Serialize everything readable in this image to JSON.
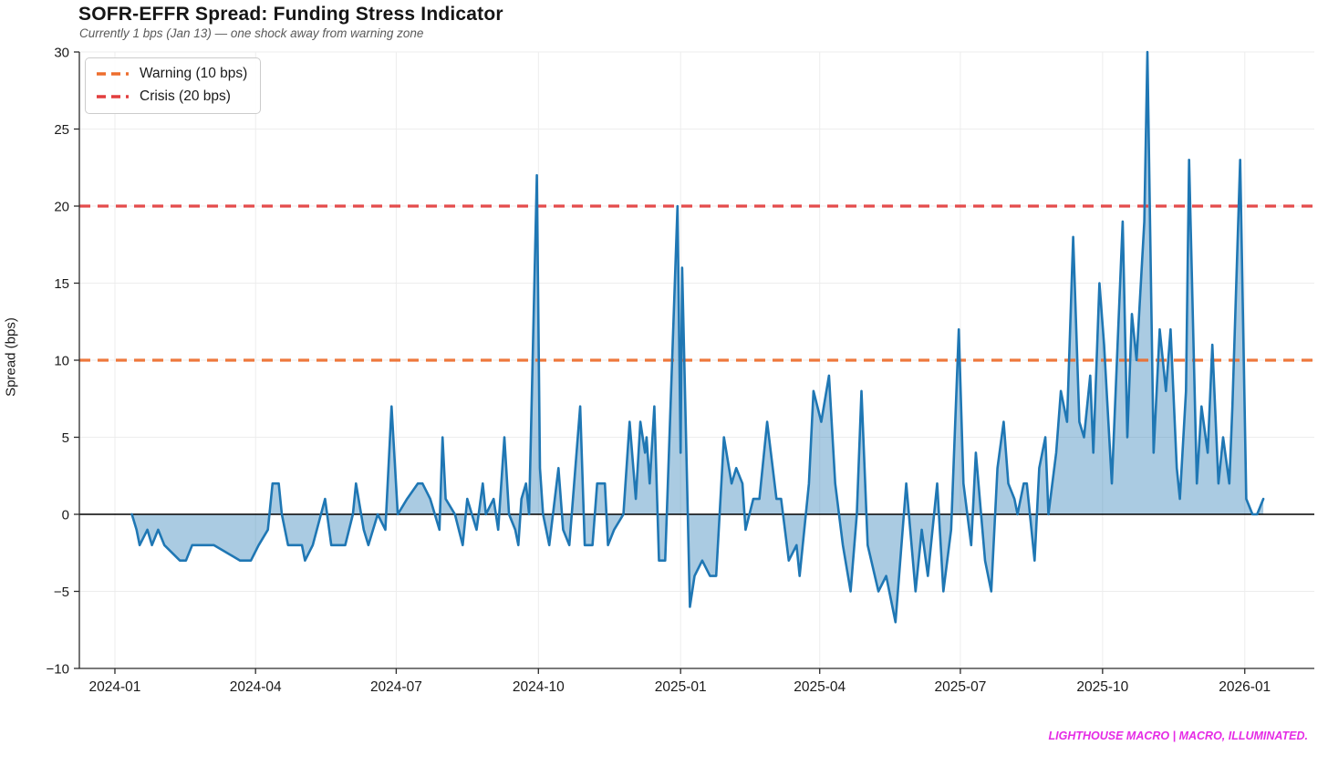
{
  "header": {
    "title": "SOFR-EFFR Spread: Funding Stress Indicator",
    "subtitle": "Currently 1 bps (Jan 13) — one shock away from warning zone"
  },
  "footer": {
    "brand": "LIGHTHOUSE MACRO | MACRO, ILLUMINATED."
  },
  "colors": {
    "line": "#1f77b4",
    "fill": "#1f77b4",
    "warning": "#ed6d2d",
    "crisis": "#e23d3d",
    "zero_line": "#000000",
    "grid": "#ededed",
    "spine": "#2b2b2b",
    "tick_text": "#1a1a1a"
  },
  "chart_data": {
    "type": "area",
    "title": "SOFR-EFFR Spread: Funding Stress Indicator",
    "subtitle": "Currently 1 bps (Jan 13) — one shock away from warning zone",
    "xlabel": "",
    "ylabel": "Spread (bps)",
    "ylim": [
      -10,
      30
    ],
    "yticks": [
      30,
      25,
      20,
      15,
      10,
      5,
      0,
      -5,
      -10
    ],
    "x_domain": [
      "2023-12-09",
      "2026-02-15"
    ],
    "xticks": [
      {
        "date": "2024-01-01",
        "label": "2024-01"
      },
      {
        "date": "2024-04-01",
        "label": "2024-04"
      },
      {
        "date": "2024-07-01",
        "label": "2024-07"
      },
      {
        "date": "2024-10-01",
        "label": "2024-10"
      },
      {
        "date": "2025-01-01",
        "label": "2025-01"
      },
      {
        "date": "2025-04-01",
        "label": "2025-04"
      },
      {
        "date": "2025-07-01",
        "label": "2025-07"
      },
      {
        "date": "2025-10-01",
        "label": "2025-10"
      },
      {
        "date": "2026-01-01",
        "label": "2026-01"
      }
    ],
    "grid": true,
    "legend_position": "upper-left",
    "zero_line": 0,
    "thresholds": [
      {
        "name": "warning",
        "label": "Warning (10 bps)",
        "value": 10,
        "color": "#ed6d2d"
      },
      {
        "name": "crisis",
        "label": "Crisis (20 bps)",
        "value": 20,
        "color": "#e23d3d"
      }
    ],
    "series": [
      {
        "name": "SOFR-EFFR spread (bps)",
        "color": "#1f77b4",
        "fill_opacity": 0.38,
        "points": [
          [
            "2024-01-12",
            0
          ],
          [
            "2024-01-15",
            -1
          ],
          [
            "2024-01-17",
            -2
          ],
          [
            "2024-01-22",
            -1
          ],
          [
            "2024-01-25",
            -2
          ],
          [
            "2024-01-29",
            -1
          ],
          [
            "2024-02-02",
            -2
          ],
          [
            "2024-02-12",
            -3
          ],
          [
            "2024-02-16",
            -3
          ],
          [
            "2024-02-20",
            -2
          ],
          [
            "2024-03-05",
            -2
          ],
          [
            "2024-03-22",
            -3
          ],
          [
            "2024-03-29",
            -3
          ],
          [
            "2024-04-03",
            -2
          ],
          [
            "2024-04-09",
            -1
          ],
          [
            "2024-04-12",
            2
          ],
          [
            "2024-04-16",
            2
          ],
          [
            "2024-04-18",
            0
          ],
          [
            "2024-04-22",
            -2
          ],
          [
            "2024-05-01",
            -2
          ],
          [
            "2024-05-03",
            -3
          ],
          [
            "2024-05-08",
            -2
          ],
          [
            "2024-05-16",
            1
          ],
          [
            "2024-05-20",
            -2
          ],
          [
            "2024-05-29",
            -2
          ],
          [
            "2024-06-03",
            0
          ],
          [
            "2024-06-05",
            2
          ],
          [
            "2024-06-10",
            -1
          ],
          [
            "2024-06-13",
            -2
          ],
          [
            "2024-06-19",
            0
          ],
          [
            "2024-06-24",
            -1
          ],
          [
            "2024-06-28",
            7
          ],
          [
            "2024-07-02",
            0
          ],
          [
            "2024-07-08",
            1
          ],
          [
            "2024-07-15",
            2
          ],
          [
            "2024-07-18",
            2
          ],
          [
            "2024-07-23",
            1
          ],
          [
            "2024-07-29",
            -1
          ],
          [
            "2024-07-31",
            5
          ],
          [
            "2024-08-02",
            1
          ],
          [
            "2024-08-08",
            0
          ],
          [
            "2024-08-13",
            -2
          ],
          [
            "2024-08-16",
            1
          ],
          [
            "2024-08-22",
            -1
          ],
          [
            "2024-08-26",
            2
          ],
          [
            "2024-08-28",
            0
          ],
          [
            "2024-09-02",
            1
          ],
          [
            "2024-09-05",
            -1
          ],
          [
            "2024-09-09",
            5
          ],
          [
            "2024-09-12",
            0
          ],
          [
            "2024-09-16",
            -1
          ],
          [
            "2024-09-18",
            -2
          ],
          [
            "2024-09-20",
            1
          ],
          [
            "2024-09-23",
            2
          ],
          [
            "2024-09-25",
            0
          ],
          [
            "2024-09-30",
            22
          ],
          [
            "2024-10-02",
            3
          ],
          [
            "2024-10-04",
            0
          ],
          [
            "2024-10-08",
            -2
          ],
          [
            "2024-10-14",
            3
          ],
          [
            "2024-10-17",
            -1
          ],
          [
            "2024-10-21",
            -2
          ],
          [
            "2024-10-28",
            7
          ],
          [
            "2024-10-31",
            -2
          ],
          [
            "2024-11-05",
            -2
          ],
          [
            "2024-11-08",
            2
          ],
          [
            "2024-11-13",
            2
          ],
          [
            "2024-11-15",
            -2
          ],
          [
            "2024-11-19",
            -1
          ],
          [
            "2024-11-25",
            0
          ],
          [
            "2024-11-29",
            6
          ],
          [
            "2024-12-03",
            1
          ],
          [
            "2024-12-06",
            6
          ],
          [
            "2024-12-09",
            4
          ],
          [
            "2024-12-10",
            5
          ],
          [
            "2024-12-12",
            2
          ],
          [
            "2024-12-15",
            7
          ],
          [
            "2024-12-18",
            -3
          ],
          [
            "2024-12-22",
            -3
          ],
          [
            "2024-12-30",
            20
          ],
          [
            "2025-01-01",
            4
          ],
          [
            "2025-01-02",
            16
          ],
          [
            "2025-01-07",
            -6
          ],
          [
            "2025-01-10",
            -4
          ],
          [
            "2025-01-15",
            -3
          ],
          [
            "2025-01-20",
            -4
          ],
          [
            "2025-01-24",
            -4
          ],
          [
            "2025-01-29",
            5
          ],
          [
            "2025-02-03",
            2
          ],
          [
            "2025-02-06",
            3
          ],
          [
            "2025-02-10",
            2
          ],
          [
            "2025-02-12",
            -1
          ],
          [
            "2025-02-17",
            1
          ],
          [
            "2025-02-21",
            1
          ],
          [
            "2025-02-26",
            6
          ],
          [
            "2025-03-04",
            1
          ],
          [
            "2025-03-07",
            1
          ],
          [
            "2025-03-12",
            -3
          ],
          [
            "2025-03-17",
            -2
          ],
          [
            "2025-03-19",
            -4
          ],
          [
            "2025-03-25",
            2
          ],
          [
            "2025-03-28",
            8
          ],
          [
            "2025-04-02",
            6
          ],
          [
            "2025-04-07",
            9
          ],
          [
            "2025-04-11",
            2
          ],
          [
            "2025-04-16",
            -2
          ],
          [
            "2025-04-21",
            -5
          ],
          [
            "2025-04-25",
            0
          ],
          [
            "2025-04-28",
            8
          ],
          [
            "2025-05-02",
            -2
          ],
          [
            "2025-05-09",
            -5
          ],
          [
            "2025-05-14",
            -4
          ],
          [
            "2025-05-20",
            -7
          ],
          [
            "2025-05-27",
            2
          ],
          [
            "2025-06-02",
            -5
          ],
          [
            "2025-06-06",
            -1
          ],
          [
            "2025-06-10",
            -4
          ],
          [
            "2025-06-16",
            2
          ],
          [
            "2025-06-20",
            -5
          ],
          [
            "2025-06-25",
            -1
          ],
          [
            "2025-06-30",
            12
          ],
          [
            "2025-07-03",
            2
          ],
          [
            "2025-07-08",
            -2
          ],
          [
            "2025-07-11",
            4
          ],
          [
            "2025-07-17",
            -3
          ],
          [
            "2025-07-21",
            -5
          ],
          [
            "2025-07-25",
            3
          ],
          [
            "2025-07-29",
            6
          ],
          [
            "2025-08-01",
            2
          ],
          [
            "2025-08-05",
            1
          ],
          [
            "2025-08-07",
            0
          ],
          [
            "2025-08-11",
            2
          ],
          [
            "2025-08-13",
            2
          ],
          [
            "2025-08-18",
            -3
          ],
          [
            "2025-08-21",
            3
          ],
          [
            "2025-08-25",
            5
          ],
          [
            "2025-08-27",
            0
          ],
          [
            "2025-09-01",
            4
          ],
          [
            "2025-09-04",
            8
          ],
          [
            "2025-09-08",
            6
          ],
          [
            "2025-09-12",
            18
          ],
          [
            "2025-09-16",
            6
          ],
          [
            "2025-09-19",
            5
          ],
          [
            "2025-09-23",
            9
          ],
          [
            "2025-09-25",
            4
          ],
          [
            "2025-09-29",
            15
          ],
          [
            "2025-10-02",
            11
          ],
          [
            "2025-10-07",
            2
          ],
          [
            "2025-10-14",
            19
          ],
          [
            "2025-10-17",
            5
          ],
          [
            "2025-10-20",
            13
          ],
          [
            "2025-10-23",
            10
          ],
          [
            "2025-10-28",
            19
          ],
          [
            "2025-10-30",
            30
          ],
          [
            "2025-11-03",
            4
          ],
          [
            "2025-11-07",
            12
          ],
          [
            "2025-11-11",
            8
          ],
          [
            "2025-11-14",
            12
          ],
          [
            "2025-11-18",
            3
          ],
          [
            "2025-11-20",
            1
          ],
          [
            "2025-11-24",
            8
          ],
          [
            "2025-11-26",
            23
          ],
          [
            "2025-12-01",
            2
          ],
          [
            "2025-12-04",
            7
          ],
          [
            "2025-12-08",
            4
          ],
          [
            "2025-12-11",
            11
          ],
          [
            "2025-12-15",
            2
          ],
          [
            "2025-12-18",
            5
          ],
          [
            "2025-12-22",
            2
          ],
          [
            "2025-12-24",
            7
          ],
          [
            "2025-12-29",
            23
          ],
          [
            "2026-01-02",
            1
          ],
          [
            "2026-01-06",
            0
          ],
          [
            "2026-01-09",
            0
          ],
          [
            "2026-01-13",
            1
          ]
        ]
      }
    ]
  }
}
